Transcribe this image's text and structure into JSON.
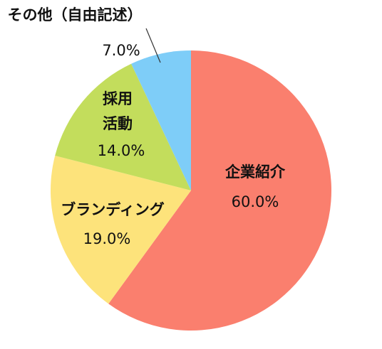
{
  "chart_data": {
    "type": "pie",
    "categories": [
      "企業紹介",
      "ブランディング",
      "採用活動",
      "その他（自由記述）"
    ],
    "values": [
      60,
      19,
      14,
      7
    ],
    "value_labels": [
      "60.0%",
      "19.0%",
      "14.0%",
      "7.0%"
    ],
    "colors": [
      "#fa7f6e",
      "#fde37b",
      "#c3dd5c",
      "#7ecdf8"
    ]
  }
}
